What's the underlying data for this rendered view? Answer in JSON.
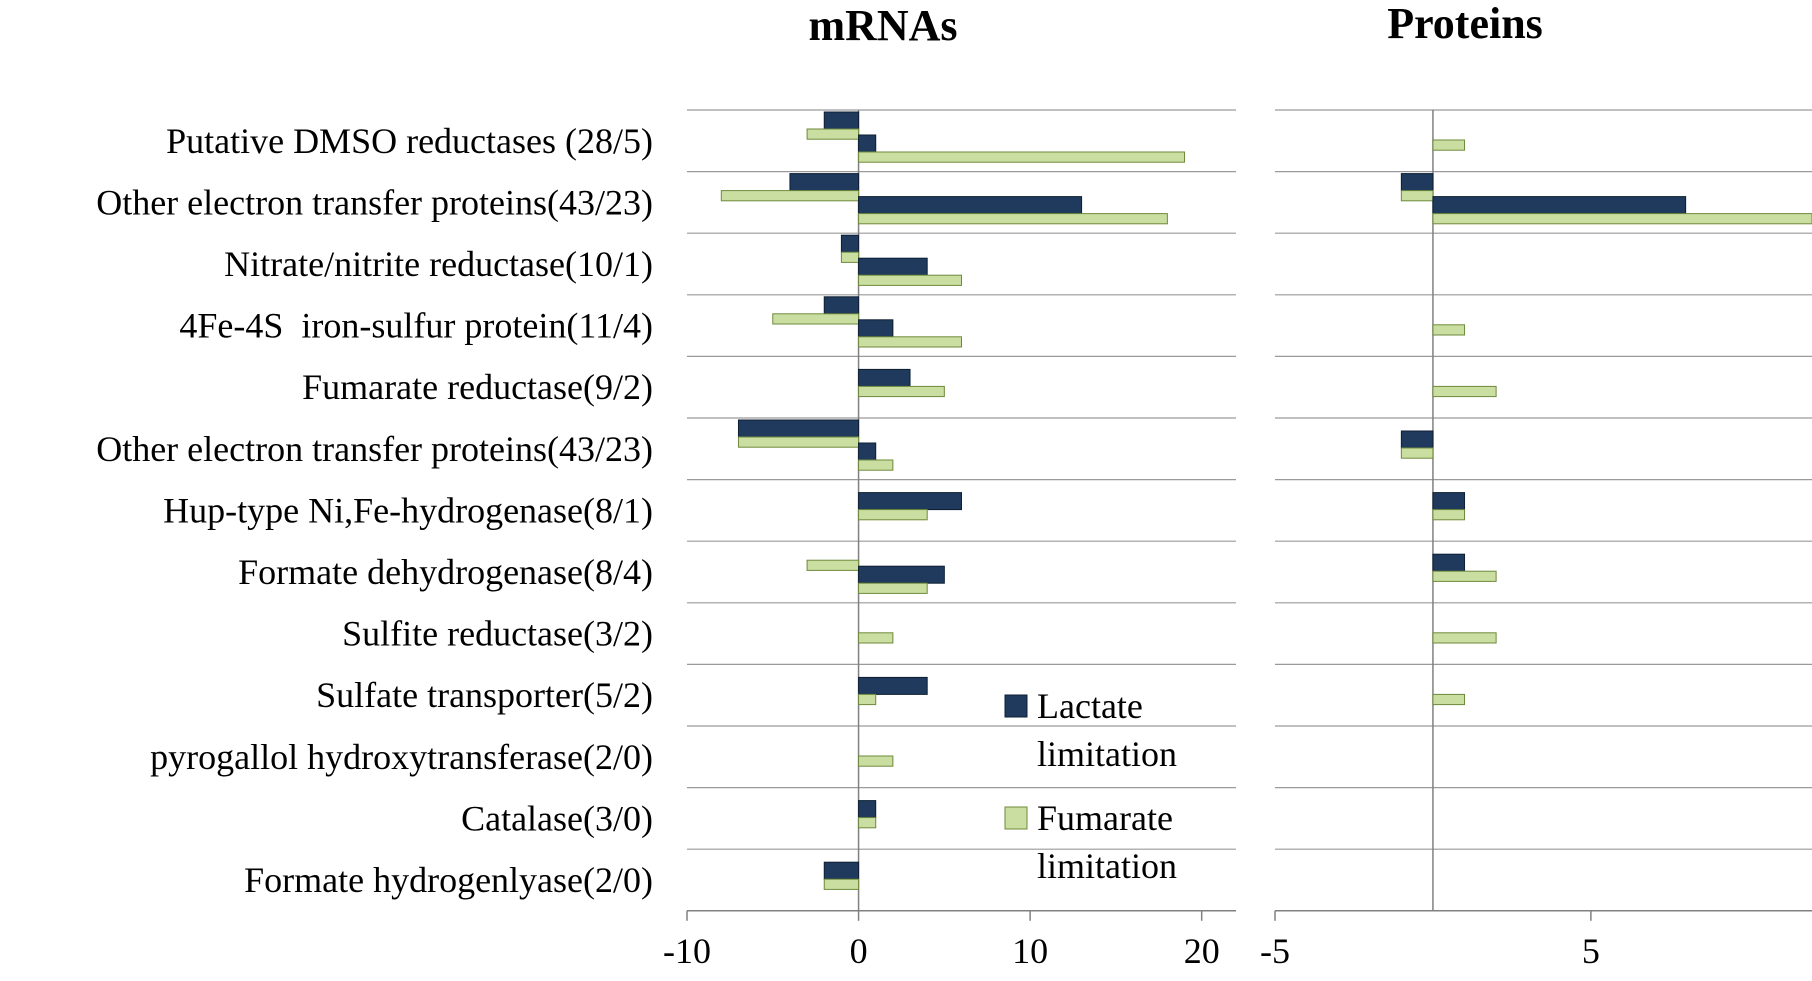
{
  "colors": {
    "lactate": "#1f3a5c",
    "fumarate": "#c9dea0",
    "fumarate_border": "#6e8a3c",
    "grid": "#9a9a9a",
    "axis": "#808080"
  },
  "chart_data": [
    {
      "type": "bar",
      "orientation": "horizontal",
      "title": "mRNAs",
      "categories": [
        "Putative DMSO reductases (28/5)",
        "Other electron transfer proteins(43/23)",
        "Nitrate/nitrite reductase(10/1)",
        "4Fe-4S  iron-sulfur protein(11/4)",
        "Fumarate reductase(9/2)",
        "Other electron transfer proteins(43/23)",
        "Hup-type Ni,Fe-hydrogenase(8/1)",
        "Formate dehydrogenase(8/4)",
        "Sulfite reductase(3/2)",
        "Sulfate transporter(5/2)",
        "pyrogallol hydroxytransferase(2/0)",
        "Catalase(3/0)",
        "Formate hydrogenlyase(2/0)"
      ],
      "series": [
        {
          "name": "Lactate limitation",
          "groups": [
            [
              -2,
              1
            ],
            [
              -4,
              13
            ],
            [
              -1,
              4
            ],
            [
              -2,
              2
            ],
            [
              3
            ],
            [
              -7,
              1
            ],
            [
              6
            ],
            [
              5
            ],
            [],
            [
              4
            ],
            [],
            [
              1
            ],
            [
              -2
            ]
          ]
        },
        {
          "name": "Fumarate limitation",
          "groups": [
            [
              -3,
              19
            ],
            [
              -8,
              18
            ],
            [
              -1,
              6
            ],
            [
              -5,
              6
            ],
            [
              5
            ],
            [
              -7,
              2
            ],
            [
              4
            ],
            [
              -3,
              4
            ],
            [
              2
            ],
            [
              1
            ],
            [
              2
            ],
            [
              1
            ],
            [
              -2
            ]
          ]
        }
      ],
      "xlim": [
        -10,
        22
      ],
      "xticks": [
        -10,
        0,
        10,
        20
      ],
      "grid": true,
      "legend": "inside-right"
    },
    {
      "type": "bar",
      "orientation": "horizontal",
      "title": "Proteins",
      "categories_shared_with": "mRNAs",
      "series": [
        {
          "name": "Lactate limitation",
          "groups": [
            [],
            [
              -1,
              8
            ],
            [],
            [],
            [],
            [
              -1
            ],
            [
              1
            ],
            [
              1
            ],
            [],
            [],
            [],
            [],
            []
          ]
        },
        {
          "name": "Fumarate limitation",
          "groups": [
            [
              1
            ],
            [
              -1,
              12
            ],
            [],
            [
              1
            ],
            [
              2
            ],
            [
              -1
            ],
            [
              1
            ],
            [
              2
            ],
            [
              2
            ],
            [
              1
            ],
            [],
            [],
            []
          ]
        }
      ],
      "xlim": [
        -5,
        12
      ],
      "xticks": [
        -5,
        5
      ],
      "grid": true
    }
  ],
  "legend": {
    "lactate_line1": "Lactate",
    "lactate_line2": "limitation",
    "fumarate_line1": "Fumarate",
    "fumarate_line2": "limitation"
  }
}
